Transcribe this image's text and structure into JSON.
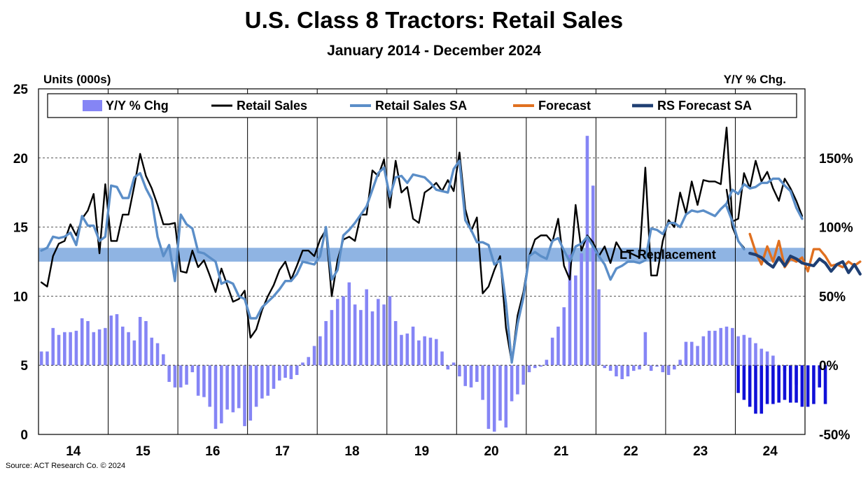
{
  "chart_data": {
    "type": "line",
    "title": "U.S. Class 8 Tractors: Retail Sales",
    "subtitle": "January 2014 - December 2024",
    "ylabel_left": "Units (000s)",
    "ylabel_right": "Y/Y % Chg.",
    "source": "Source: ACT Research Co. © 2024",
    "ylim_left": [
      0,
      25
    ],
    "ylim_right": [
      -50,
      200
    ],
    "yticks_left": [
      "0",
      "5",
      "10",
      "15",
      "20",
      "25"
    ],
    "yticks_right": [
      "-50%",
      "0%",
      "50%",
      "100%",
      "150%"
    ],
    "ytick_values_right": [
      -50,
      0,
      50,
      100,
      150
    ],
    "x_categories": [
      "14",
      "15",
      "16",
      "17",
      "18",
      "19",
      "20",
      "21",
      "22",
      "23",
      "24"
    ],
    "lt_replacement": {
      "label": "LT Replacement",
      "low": 12.5,
      "high": 13.5
    },
    "legend": [
      "Y/Y % Chg",
      "Retail Sales",
      "Retail Sales SA",
      "Forecast",
      "RS Forecast SA"
    ],
    "colors": {
      "yoy": "#8585f5",
      "yoy_forecast": "#1010d8",
      "retail_sales": "#000000",
      "retail_sales_sa": "#5b8ec8",
      "forecast": "#e07020",
      "rs_forecast_sa": "#1f3f73",
      "lt_band": "#8fb4e3"
    },
    "series": [
      {
        "name": "Retail Sales",
        "start": "2014-01",
        "values": [
          11.0,
          10.7,
          12.9,
          13.8,
          14.0,
          15.2,
          14.4,
          15.6,
          16.2,
          17.4,
          13.1,
          18.1,
          14.0,
          14.0,
          15.9,
          15.9,
          18.0,
          20.3,
          18.7,
          17.8,
          16.6,
          15.2,
          15.2,
          15.3,
          11.8,
          11.7,
          13.3,
          12.1,
          12.6,
          11.5,
          10.3,
          12.0,
          10.8,
          9.6,
          9.8,
          10.4,
          7.0,
          7.6,
          9.0,
          10.0,
          10.8,
          11.9,
          12.5,
          11.2,
          12.2,
          13.3,
          13.3,
          12.9,
          14.1,
          14.8,
          10.0,
          12.6,
          14.1,
          14.3,
          14.0,
          15.9,
          15.9,
          19.1,
          18.7,
          19.9,
          16.4,
          19.8,
          17.5,
          17.9,
          15.6,
          15.3,
          17.5,
          17.8,
          18.2,
          17.6,
          18.4,
          17.6,
          20.4,
          16.3,
          14.7,
          15.7,
          10.2,
          10.7,
          11.9,
          12.9,
          7.7,
          5.2,
          8.6,
          10.3,
          12.9,
          14.1,
          14.4,
          14.4,
          13.9,
          15.6,
          12.2,
          11.2,
          16.6,
          13.3,
          14.4,
          13.9,
          12.9,
          13.6,
          12.4,
          13.9,
          13.2,
          13.2,
          13.0,
          12.8,
          19.3,
          11.5,
          11.5,
          14.0,
          15.5,
          15.0,
          17.5,
          16.0,
          18.3,
          16.6,
          18.4,
          18.3,
          18.3,
          18.1,
          22.2,
          15.4,
          15.6,
          18.9,
          17.8,
          19.8,
          18.3,
          19.0,
          17.8,
          16.9,
          18.5,
          17.8,
          16.9,
          15.8
        ],
        "color": "#000000"
      },
      {
        "name": "Retail Sales SA",
        "start": "2014-01",
        "values": [
          13.3,
          13.5,
          14.3,
          14.2,
          14.3,
          14.6,
          13.7,
          15.8,
          15.1,
          15.1,
          14.0,
          14.3,
          18.0,
          17.9,
          17.1,
          17.1,
          18.6,
          18.9,
          17.8,
          17.0,
          14.3,
          12.9,
          13.7,
          11.1,
          15.9,
          15.2,
          14.9,
          13.2,
          13.1,
          12.8,
          12.5,
          10.9,
          11.1,
          10.9,
          10.0,
          9.8,
          8.4,
          8.4,
          9.2,
          9.6,
          10.0,
          10.5,
          11.1,
          11.1,
          11.6,
          12.5,
          12.4,
          12.3,
          12.9,
          15.0,
          11.2,
          11.9,
          14.4,
          14.8,
          15.3,
          15.9,
          16.5,
          17.7,
          18.9,
          19.3,
          17.2,
          18.6,
          18.7,
          18.2,
          18.8,
          18.7,
          18.6,
          18.2,
          17.7,
          17.6,
          17.5,
          19.2,
          19.8,
          15.5,
          14.8,
          13.9,
          13.9,
          13.7,
          12.3,
          12.6,
          9.5,
          5.2,
          8.0,
          9.9,
          12.9,
          13.2,
          12.9,
          12.7,
          14.0,
          14.2,
          13.3,
          12.5,
          13.6,
          13.8,
          14.3,
          13.6,
          12.9,
          12.3,
          11.2,
          12.0,
          12.2,
          12.5,
          12.5,
          12.4,
          12.6,
          14.9,
          14.8,
          14.5,
          15.3,
          15.3,
          15.0,
          15.9,
          16.2,
          16.1,
          16.2,
          16.0,
          15.8,
          16.3,
          16.7,
          17.7,
          17.4,
          18.1,
          17.8,
          17.9,
          18.2,
          18.2,
          18.5,
          18.5,
          18.0,
          17.6,
          16.4,
          15.6
        ],
        "color": "#5b8ec8"
      }
    ],
    "series_tail": [
      {
        "name": "Retail Sales (tail)",
        "start": "2023-11",
        "values": [
          17.7,
          15.0,
          14.0,
          13.5
        ],
        "color": "#000000"
      },
      {
        "name": "Retail Sales SA (tail)",
        "start": "2023-11",
        "values": [
          16.5,
          15.4,
          14.0,
          13.4
        ],
        "color": "#5b8ec8"
      },
      {
        "name": "Forecast",
        "start": "2024-03",
        "values": [
          14.5,
          13.2,
          12.3,
          13.6,
          12.5,
          14.0,
          12.1,
          12.7,
          12.5,
          12.8,
          11.8,
          13.4,
          13.4,
          12.9,
          12.2,
          12.3,
          12.1,
          12.5,
          12.2,
          12.5
        ],
        "color": "#e07020"
      },
      {
        "name": "RS Forecast SA",
        "start": "2024-03",
        "values": [
          13.1,
          13.0,
          12.8,
          12.4,
          12.1,
          12.8,
          12.2,
          12.9,
          12.7,
          12.4,
          12.3,
          12.2,
          12.7,
          12.4,
          11.8,
          12.3,
          12.5,
          11.7,
          12.3,
          11.6
        ],
        "color": "#1f3f73"
      }
    ],
    "yoy": {
      "name": "Y/Y % Chg",
      "start": "2014-01",
      "values": [
        10,
        10,
        27,
        22,
        24,
        24,
        25,
        34,
        32,
        24,
        26,
        27,
        36,
        37,
        28,
        24,
        18,
        35,
        32,
        20,
        16,
        8,
        -12,
        -16,
        -16,
        -14,
        -5,
        -22,
        -23,
        -30,
        -46,
        -42,
        -32,
        -34,
        -31,
        -44,
        -40,
        -30,
        -24,
        -22,
        -17,
        -11,
        -9,
        -10,
        -7,
        2,
        6,
        14,
        21,
        32,
        40,
        48,
        50,
        60,
        44,
        40,
        55,
        39,
        48,
        44,
        50,
        32,
        22,
        23,
        28,
        18,
        21,
        20,
        19,
        10,
        -3,
        2,
        -8,
        -15,
        -16,
        -12,
        -25,
        -46,
        -48,
        -40,
        -45,
        -26,
        -21,
        -14,
        -5,
        -2,
        -1,
        4,
        20,
        28,
        42,
        80,
        65,
        81,
        166,
        130,
        55,
        -2,
        -4,
        -8,
        -10,
        -8,
        -4,
        -3,
        24,
        -4,
        -1,
        -5,
        -7,
        -3,
        4,
        17,
        17,
        14,
        21,
        25,
        25,
        27,
        28,
        27,
        21,
        22,
        20,
        16,
        12,
        10,
        7,
        -1,
        -4,
        -10,
        -14,
        -26
      ],
      "forecast_start": "2024-01",
      "forecast_values": [
        -20,
        -25,
        -30,
        -35,
        -35,
        -28,
        -28,
        -27,
        -25,
        -27,
        -27,
        -30,
        -30,
        -28,
        -16,
        -28
      ]
    },
    "grid": {
      "horizontal": "dashed",
      "vertical_year_dividers": true
    },
    "legend_position": "top"
  }
}
